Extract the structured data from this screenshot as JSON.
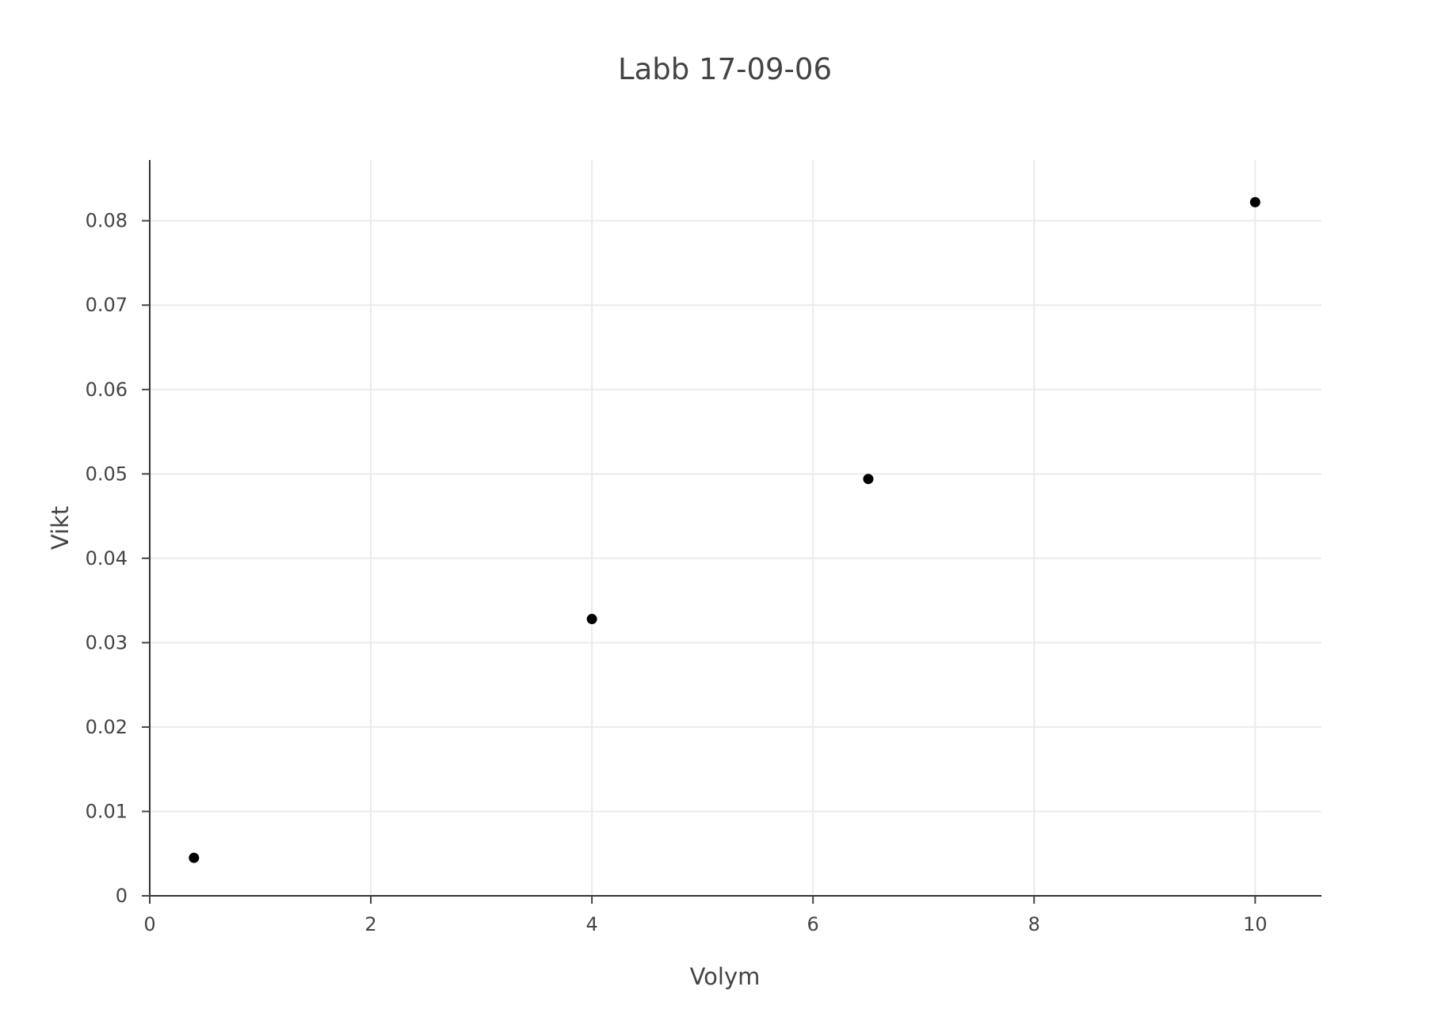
{
  "chart_data": {
    "type": "scatter",
    "title": "Labb 17-09-06",
    "xlabel": "Volym",
    "ylabel": "Vikt",
    "xlim": [
      0,
      10.6
    ],
    "ylim": [
      0,
      0.0872
    ],
    "x_ticks": [
      0,
      2,
      4,
      6,
      8,
      10
    ],
    "x_tick_labels": [
      "0",
      "2",
      "4",
      "6",
      "8",
      "10"
    ],
    "y_ticks": [
      0,
      0.01,
      0.02,
      0.03,
      0.04,
      0.05,
      0.06,
      0.07,
      0.08
    ],
    "y_tick_labels": [
      "0",
      "0.01",
      "0.02",
      "0.03",
      "0.04",
      "0.05",
      "0.06",
      "0.07",
      "0.08"
    ],
    "grid": true,
    "series": [
      {
        "color": "#000000",
        "points": [
          {
            "x": 0.4,
            "y": 0.0045
          },
          {
            "x": 4.0,
            "y": 0.0328
          },
          {
            "x": 6.5,
            "y": 0.0494
          },
          {
            "x": 10.0,
            "y": 0.0822
          }
        ]
      }
    ]
  }
}
